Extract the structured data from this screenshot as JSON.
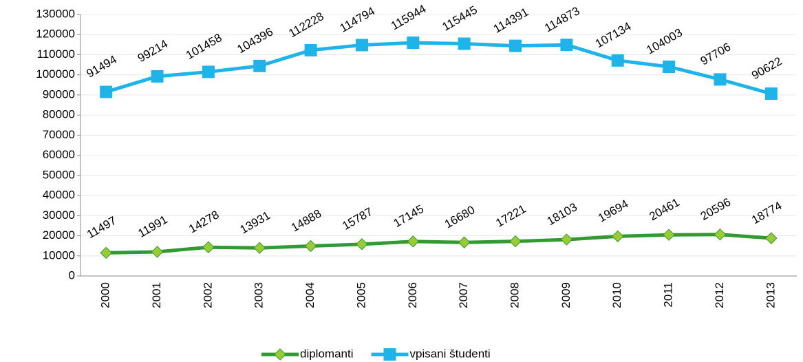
{
  "chart_data": {
    "type": "line",
    "categories": [
      "2000",
      "2001",
      "2002",
      "2003",
      "2004",
      "2005",
      "2006",
      "2007",
      "2008",
      "2009",
      "2010",
      "2011",
      "2012",
      "2013"
    ],
    "series": [
      {
        "name": "diplomanti",
        "color": "#339933",
        "marker_color": "#99cc33",
        "marker": "diamond",
        "values": [
          11497,
          11991,
          14278,
          13931,
          14888,
          15787,
          17145,
          16680,
          17221,
          18103,
          19694,
          20461,
          20596,
          18774
        ]
      },
      {
        "name": "vpisani študenti",
        "color": "#1fb4e9",
        "marker_color": "#1fb4e9",
        "marker": "square",
        "values": [
          91494,
          99214,
          101458,
          104396,
          112228,
          114794,
          115944,
          115445,
          114391,
          114873,
          107134,
          104003,
          97706,
          90622
        ]
      }
    ],
    "ylim": [
      0,
      130000
    ],
    "yticks": [
      0,
      10000,
      20000,
      30000,
      40000,
      50000,
      60000,
      70000,
      80000,
      90000,
      100000,
      110000,
      120000,
      130000
    ],
    "grid": true,
    "legend": "bottom"
  }
}
